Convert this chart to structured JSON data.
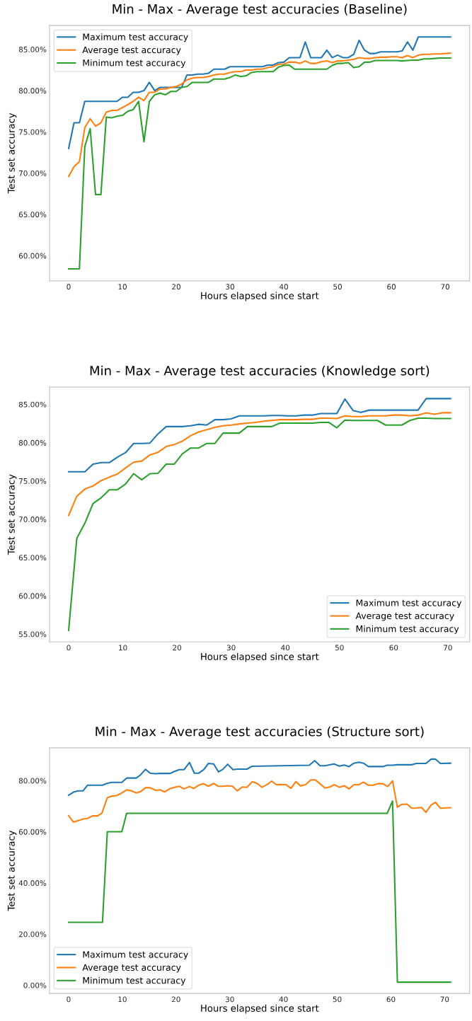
{
  "chart_data": [
    {
      "type": "line",
      "title": "Min - Max - Average test accuracies (Baseline)",
      "xlabel": "Hours elapsed since start",
      "ylabel": "Test set accuracy",
      "legend": "upper left",
      "grid": false,
      "x": [
        0,
        1,
        2,
        3,
        4,
        5,
        6,
        7,
        8,
        9,
        10,
        11,
        12,
        13,
        14,
        15,
        16,
        17,
        18,
        19,
        20,
        21,
        22,
        23,
        24,
        25,
        26,
        27,
        28,
        29,
        30,
        31,
        32,
        33,
        34,
        35,
        36,
        37,
        38,
        39,
        40,
        41,
        42,
        43,
        44,
        45,
        46,
        47,
        48,
        49,
        50,
        51,
        52,
        53,
        54,
        55,
        56,
        57,
        58,
        59,
        60,
        61,
        62,
        63,
        64,
        65,
        66,
        67,
        68,
        69,
        70,
        71
      ],
      "xlim": [
        -3.55,
        74.55
      ],
      "xticks": [
        0,
        10,
        20,
        30,
        40,
        50,
        60,
        70
      ],
      "ylim": [
        56.95,
        87.9
      ],
      "yticks": [
        {
          "value": 60,
          "label": "60.00%"
        },
        {
          "value": 65,
          "label": "65.00%"
        },
        {
          "value": 70,
          "label": "70.00%"
        },
        {
          "value": 75,
          "label": "75.00%"
        },
        {
          "value": 80,
          "label": "80.00%"
        },
        {
          "value": 85,
          "label": "85.00%"
        }
      ],
      "series": [
        {
          "name": "Maximum test accuracy",
          "color": "#1f77b4",
          "values": [
            73.0,
            76.1,
            76.1,
            78.7,
            78.7,
            78.7,
            78.7,
            78.7,
            78.7,
            78.7,
            79.2,
            79.2,
            79.8,
            79.8,
            80.0,
            81.0,
            80.0,
            80.4,
            80.4,
            80.4,
            80.4,
            80.4,
            81.9,
            81.9,
            82.0,
            82.0,
            82.1,
            82.6,
            82.6,
            82.6,
            82.9,
            82.9,
            82.9,
            82.9,
            82.9,
            82.9,
            82.9,
            83.1,
            83.1,
            83.4,
            83.45,
            84.0,
            84.0,
            84.0,
            85.9,
            84.0,
            84.0,
            84.0,
            84.9,
            84.0,
            84.3,
            84.0,
            84.0,
            84.4,
            86.1,
            84.9,
            84.5,
            84.5,
            84.7,
            84.7,
            84.7,
            84.7,
            84.8,
            85.9,
            84.9,
            86.5,
            86.5,
            86.5,
            86.5,
            86.5,
            86.5,
            86.5
          ]
        },
        {
          "name": "Average test accuracy",
          "color": "#ff7f0e",
          "values": [
            69.6,
            70.8,
            71.4,
            75.5,
            76.6,
            75.7,
            76.1,
            77.4,
            77.6,
            77.6,
            77.95,
            78.3,
            78.7,
            79.2,
            78.8,
            79.8,
            79.8,
            80.2,
            80.2,
            80.4,
            80.5,
            80.8,
            81.3,
            81.5,
            81.6,
            81.6,
            81.7,
            81.9,
            82.0,
            82.0,
            82.2,
            82.3,
            82.3,
            82.5,
            82.5,
            82.6,
            82.6,
            82.8,
            82.9,
            83.2,
            83.2,
            83.45,
            83.45,
            83.3,
            83.6,
            83.3,
            83.3,
            83.5,
            83.6,
            83.4,
            83.6,
            83.6,
            83.7,
            83.8,
            84.0,
            83.9,
            83.9,
            84.0,
            84.05,
            84.05,
            84.1,
            84.1,
            84.0,
            84.25,
            84.0,
            84.3,
            84.4,
            84.4,
            84.45,
            84.45,
            84.5,
            84.55
          ]
        },
        {
          "name": "Minimum test accuracy",
          "color": "#2ca02c",
          "values": [
            58.4,
            58.4,
            58.4,
            73.2,
            75.4,
            67.4,
            67.4,
            76.8,
            76.7,
            76.9,
            77.0,
            77.5,
            77.7,
            78.7,
            73.8,
            78.7,
            79.5,
            79.7,
            79.5,
            79.9,
            79.9,
            80.4,
            80.5,
            81.0,
            81.0,
            81.0,
            81.0,
            81.4,
            81.4,
            81.4,
            81.6,
            81.9,
            81.7,
            81.8,
            82.2,
            82.3,
            82.3,
            82.3,
            82.3,
            82.85,
            83.05,
            83.1,
            82.6,
            82.6,
            82.6,
            82.6,
            82.6,
            82.6,
            82.6,
            83.05,
            83.3,
            83.3,
            83.4,
            82.8,
            82.9,
            83.45,
            83.45,
            83.65,
            83.65,
            83.65,
            83.65,
            83.65,
            83.6,
            83.65,
            83.7,
            83.7,
            83.85,
            83.85,
            83.9,
            83.95,
            83.95,
            83.95
          ]
        }
      ]
    },
    {
      "type": "line",
      "title": "Min - Max - Average test accuracies (Knowledge sort)",
      "xlabel": "Hours elapsed since start",
      "ylabel": "Test set accuracy",
      "legend": "lower right",
      "grid": false,
      "x": [
        0,
        1.5,
        3,
        4.5,
        6,
        7.5,
        9,
        10.5,
        12,
        13.5,
        15,
        16.5,
        18,
        19.5,
        21,
        22.5,
        24,
        25.5,
        27,
        28.5,
        30,
        31.5,
        33,
        34.5,
        36,
        37.5,
        39,
        40.5,
        42,
        43.5,
        45,
        46.5,
        48,
        49.5,
        51,
        52.5,
        54,
        55.5,
        57,
        58.5,
        60,
        61.5,
        63,
        64.5,
        66,
        67.5,
        69,
        70.5
      ],
      "xlim": [
        -3.525,
        74.025
      ],
      "xticks": [
        0,
        10,
        20,
        30,
        40,
        50,
        60,
        70
      ],
      "ylim": [
        54.0,
        87.26
      ],
      "yticks": [
        {
          "value": 55,
          "label": "55.00%"
        },
        {
          "value": 60,
          "label": "60.00%"
        },
        {
          "value": 65,
          "label": "65.00%"
        },
        {
          "value": 70,
          "label": "70.00%"
        },
        {
          "value": 75,
          "label": "75.00%"
        },
        {
          "value": 80,
          "label": "80.00%"
        },
        {
          "value": 85,
          "label": "85.00%"
        }
      ],
      "series": [
        {
          "name": "Maximum test accuracy",
          "color": "#1f77b4",
          "values": [
            76.2,
            76.2,
            76.2,
            77.2,
            77.4,
            77.4,
            78.1,
            78.7,
            79.9,
            79.9,
            79.95,
            81.15,
            82.1,
            82.1,
            82.1,
            82.2,
            82.4,
            82.3,
            83.0,
            83.0,
            83.1,
            83.5,
            83.5,
            83.5,
            83.5,
            83.55,
            83.55,
            83.5,
            83.5,
            83.6,
            83.6,
            83.8,
            83.8,
            83.8,
            85.7,
            84.2,
            83.95,
            84.25,
            84.25,
            84.25,
            84.25,
            84.25,
            84.25,
            84.25,
            85.75,
            85.75,
            85.75,
            85.75
          ]
        },
        {
          "name": "Average test accuracy",
          "color": "#ff7f0e",
          "values": [
            70.5,
            73.0,
            73.95,
            74.35,
            75.05,
            75.5,
            75.9,
            76.7,
            77.45,
            77.6,
            78.4,
            78.75,
            79.5,
            79.75,
            80.2,
            80.9,
            81.4,
            81.7,
            82.0,
            82.2,
            82.3,
            82.45,
            82.55,
            82.65,
            82.8,
            82.9,
            83.0,
            83.0,
            83.0,
            83.05,
            83.05,
            83.2,
            83.2,
            83.15,
            83.5,
            83.4,
            83.4,
            83.5,
            83.5,
            83.5,
            83.6,
            83.6,
            83.5,
            83.6,
            83.9,
            83.7,
            83.9,
            83.9
          ]
        },
        {
          "name": "Minimum test accuracy",
          "color": "#2ca02c",
          "values": [
            55.5,
            67.5,
            69.5,
            72.05,
            72.8,
            73.85,
            73.85,
            74.6,
            75.95,
            75.15,
            75.95,
            76.0,
            77.2,
            77.2,
            78.55,
            79.3,
            79.3,
            79.9,
            79.9,
            81.25,
            81.25,
            81.25,
            82.1,
            82.1,
            82.1,
            82.1,
            82.55,
            82.55,
            82.55,
            82.55,
            82.55,
            82.65,
            82.65,
            81.95,
            82.95,
            82.9,
            82.9,
            82.9,
            82.9,
            82.3,
            82.3,
            82.3,
            82.9,
            83.2,
            83.2,
            83.15,
            83.15,
            83.15
          ]
        }
      ]
    },
    {
      "type": "line",
      "title": "Min - Max - Average test accuracies (Structure sort)",
      "xlabel": "Hours elapsed since start",
      "ylabel": "Test set accuracy",
      "legend": "lower left",
      "grid": false,
      "xlim": [
        -3.55,
        74.65
      ],
      "xticks": [
        0,
        10,
        20,
        30,
        40,
        50,
        60,
        70
      ],
      "ylim": [
        -3.2,
        92.8
      ],
      "yticks": [
        {
          "value": 0,
          "label": "0.00%"
        },
        {
          "value": 20,
          "label": "20.00%"
        },
        {
          "value": 40,
          "label": "40.00%"
        },
        {
          "value": 60,
          "label": "60.00%"
        },
        {
          "value": 80,
          "label": "80.00%"
        }
      ],
      "series": [
        {
          "name": "Maximum test accuracy",
          "color": "#1f77b4",
          "x": [
            0,
            1.0,
            1.8,
            2.7,
            3.5,
            6.3,
            7.1,
            8.0,
            9.9,
            10.8,
            12.6,
            13.4,
            14.3,
            15.2,
            16.2,
            17.0,
            18.9,
            19.7,
            20.6,
            21.5,
            22.5,
            23.4,
            24.2,
            25.2,
            26.0,
            27.0,
            27.9,
            28.7,
            29.6,
            30.6,
            31.4,
            33.2,
            34.1,
            44.8,
            45.8,
            46.8,
            47.7,
            49.4,
            50.4,
            51.3,
            52.2,
            53.1,
            54.0,
            54.9,
            55.8,
            58.5,
            59.3,
            60.3,
            61.2,
            63.9,
            64.7,
            66.5,
            67.5,
            68.3,
            69.2,
            71.1
          ],
          "values": [
            74.3,
            75.6,
            76.0,
            76.0,
            78.2,
            78.2,
            78.9,
            79.3,
            79.3,
            81.0,
            81.0,
            82.3,
            84.4,
            82.9,
            82.7,
            82.8,
            82.8,
            83.6,
            84.3,
            84.3,
            87.1,
            82.9,
            82.9,
            84.4,
            86.7,
            86.5,
            83.4,
            84.4,
            86.4,
            84.3,
            84.5,
            84.5,
            85.6,
            86.0,
            87.8,
            85.8,
            85.8,
            86.5,
            85.7,
            86.1,
            85.5,
            86.8,
            87.2,
            86.8,
            85.5,
            85.5,
            86.0,
            86.0,
            86.2,
            86.2,
            86.7,
            86.7,
            88.4,
            88.4,
            86.7,
            86.8
          ]
        },
        {
          "name": "Average test accuracy",
          "color": "#ff7f0e",
          "x": [
            0,
            0.9,
            1.8,
            2.7,
            3.5,
            4.4,
            5.4,
            6.2,
            7.2,
            8.0,
            9.0,
            9.9,
            10.8,
            11.7,
            12.6,
            13.4,
            14.3,
            15.2,
            16.2,
            17.0,
            17.9,
            18.8,
            19.7,
            20.6,
            21.5,
            22.5,
            23.3,
            24.2,
            25.1,
            26.0,
            27.0,
            27.8,
            28.7,
            29.6,
            30.5,
            31.4,
            32.3,
            33.2,
            34.2,
            35.1,
            36.0,
            37.0,
            37.8,
            38.7,
            39.6,
            40.5,
            41.4,
            42.3,
            43.2,
            44.1,
            45.1,
            45.9,
            46.8,
            47.7,
            48.6,
            49.5,
            50.4,
            51.3,
            52.2,
            53.1,
            54.0,
            54.9,
            55.8,
            56.7,
            57.6,
            58.5,
            59.4,
            60.3,
            61.2,
            62.0,
            63.0,
            63.9,
            64.7,
            65.7,
            66.5,
            67.5,
            68.3,
            69.2,
            71.1
          ],
          "values": [
            66.3,
            63.8,
            64.4,
            65.0,
            65.2,
            66.2,
            66.2,
            67.3,
            73.3,
            73.9,
            74.2,
            75.2,
            76.4,
            76.0,
            75.2,
            75.7,
            77.2,
            77.2,
            76.2,
            76.4,
            75.6,
            76.8,
            77.4,
            77.8,
            76.8,
            77.7,
            76.9,
            78.2,
            78.8,
            77.8,
            78.9,
            77.8,
            77.8,
            78.0,
            77.8,
            76.0,
            77.5,
            77.4,
            79.6,
            78.9,
            77.4,
            78.5,
            79.8,
            78.4,
            78.5,
            78.4,
            77.0,
            79.6,
            77.9,
            78.4,
            80.3,
            80.3,
            78.8,
            77.1,
            77.5,
            78.4,
            77.4,
            78.0,
            76.8,
            78.4,
            78.4,
            79.4,
            78.2,
            78.2,
            78.8,
            78.8,
            77.7,
            79.9,
            69.6,
            70.7,
            70.8,
            69.2,
            69.3,
            69.5,
            67.6,
            70.5,
            71.5,
            69.2,
            69.4
          ]
        },
        {
          "name": "Minimum test accuracy",
          "color": "#2ca02c",
          "x": [
            0,
            6.3,
            7.2,
            9.9,
            10.8,
            59.3,
            60.3,
            61.2,
            71.1
          ],
          "values": [
            24.6,
            24.6,
            60.0,
            60.0,
            67.2,
            67.2,
            72.0,
            1.2,
            1.2
          ]
        }
      ]
    }
  ]
}
